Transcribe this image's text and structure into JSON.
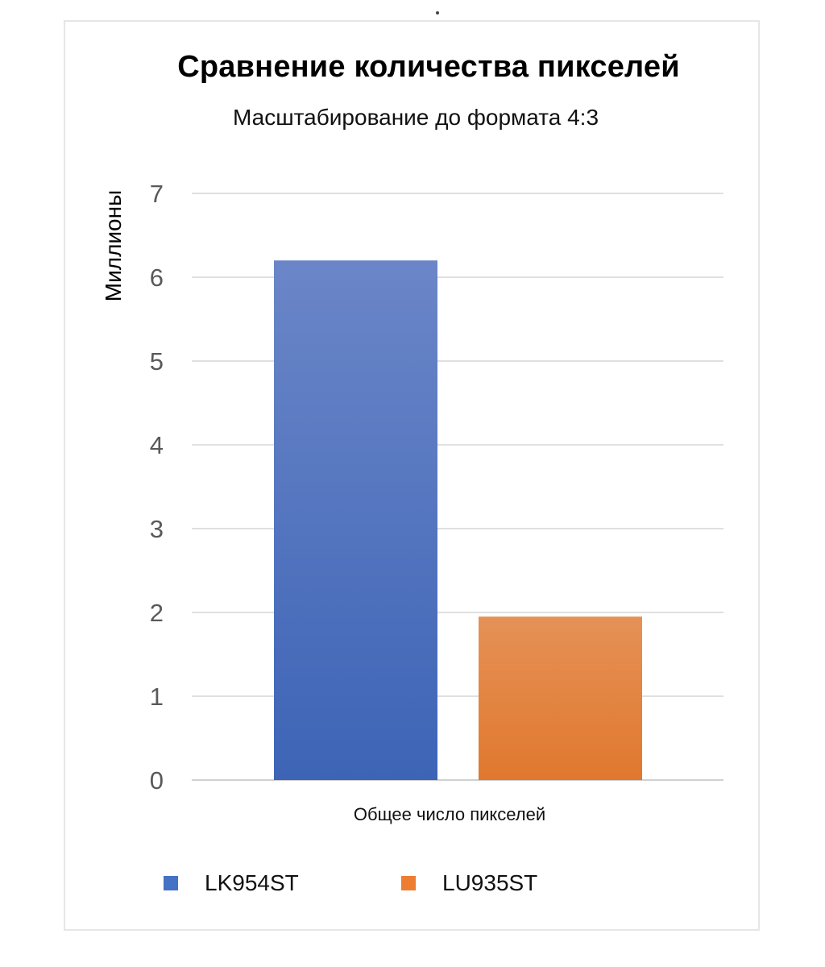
{
  "chart_data": {
    "type": "bar",
    "title": "Сравнение количества пикселей",
    "subtitle": "Масштабирование до формата 4:3",
    "xlabel": "Общее число пикселей",
    "ylabel": "Миллионы",
    "categories": [
      "Общее число пикселей"
    ],
    "series": [
      {
        "name": "LK954ST",
        "values": [
          6.2
        ],
        "color": "#4472c4"
      },
      {
        "name": "LU935ST",
        "values": [
          1.95
        ],
        "color": "#ed7d31"
      }
    ],
    "ylim": [
      0,
      7
    ],
    "yticks": [
      "0",
      "1",
      "2",
      "3",
      "4",
      "5",
      "6",
      "7"
    ],
    "grid": true,
    "legend_position": "bottom"
  }
}
